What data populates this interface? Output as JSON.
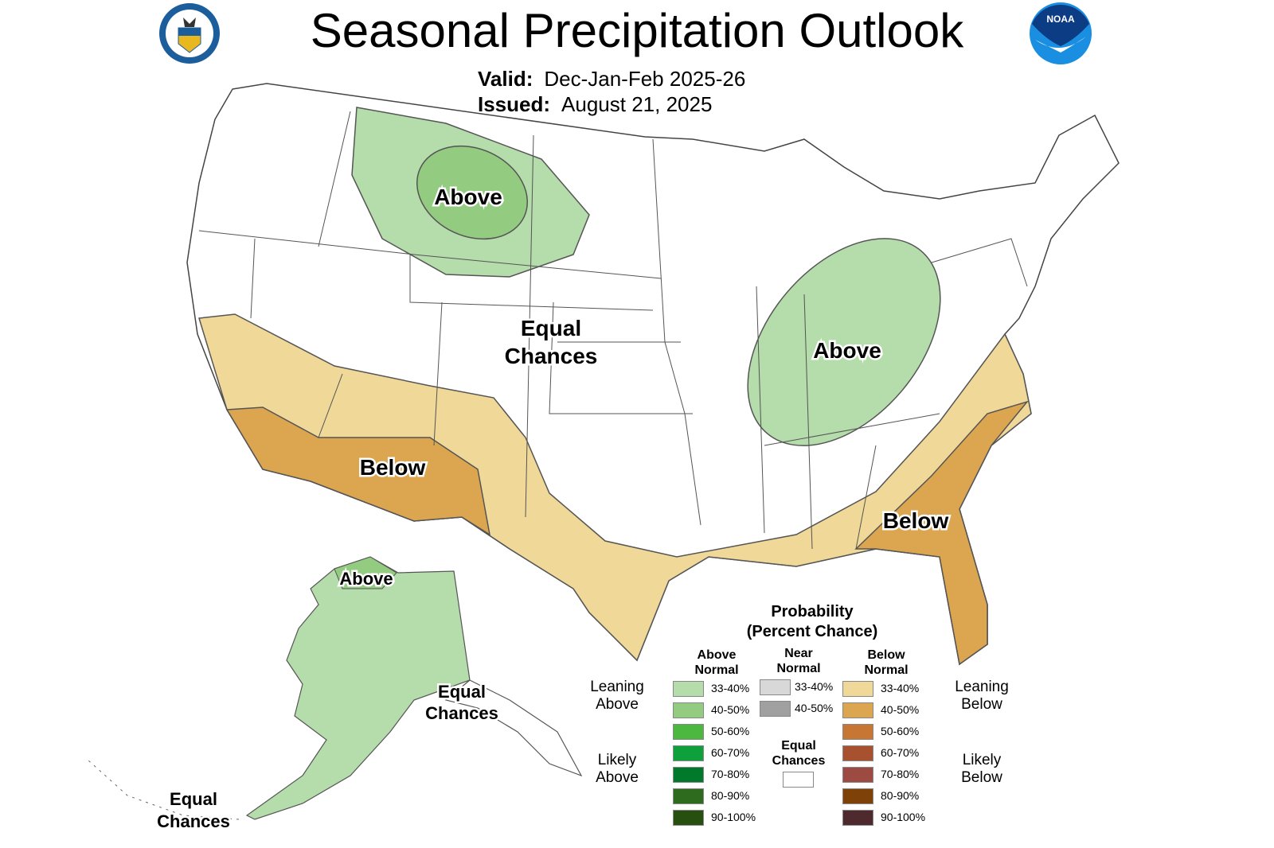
{
  "header": {
    "title": "Seasonal Precipitation Outlook",
    "valid_label": "Valid:",
    "valid_value": "Dec-Jan-Feb 2025-26",
    "issued_label": "Issued:",
    "issued_value": "August 21, 2025",
    "left_logo": "Department of Commerce seal",
    "right_logo": "NOAA",
    "right_logo_text": "NOAA"
  },
  "map": {
    "labels": {
      "nw_above": "Above",
      "ohio_above": "Above",
      "central_ec_1": "Equal",
      "central_ec_2": "Chances",
      "sw_below": "Below",
      "se_below": "Below",
      "ak_above": "Above",
      "ak_ec_1": "Equal",
      "ak_ec_2": "Chances",
      "ak_sw_ec_1": "Equal",
      "ak_sw_ec_2": "Chances"
    }
  },
  "legend": {
    "title_1": "Probability",
    "title_2": "(Percent Chance)",
    "above_head_1": "Above",
    "above_head_2": "Normal",
    "near_head_1": "Near",
    "near_head_2": "Normal",
    "below_head_1": "Below",
    "below_head_2": "Normal",
    "leaning_above_1": "Leaning",
    "leaning_above_2": "Above",
    "likely_above_1": "Likely",
    "likely_above_2": "Above",
    "leaning_below_1": "Leaning",
    "leaning_below_2": "Below",
    "likely_below_1": "Likely",
    "likely_below_2": "Below",
    "equal_1": "Equal",
    "equal_2": "Chances",
    "above": [
      {
        "range": "33-40%",
        "color": "#b5dcab"
      },
      {
        "range": "40-50%",
        "color": "#93cc80"
      },
      {
        "range": "50-60%",
        "color": "#4db840"
      },
      {
        "range": "60-70%",
        "color": "#0ea03a"
      },
      {
        "range": "70-80%",
        "color": "#007a2a"
      },
      {
        "range": "80-90%",
        "color": "#2e6b1f"
      },
      {
        "range": "90-100%",
        "color": "#274f10"
      }
    ],
    "near": [
      {
        "range": "33-40%",
        "color": "#d8d8d8"
      },
      {
        "range": "40-50%",
        "color": "#a0a0a0"
      }
    ],
    "below": [
      {
        "range": "33-40%",
        "color": "#f0d898"
      },
      {
        "range": "40-50%",
        "color": "#dca550"
      },
      {
        "range": "50-60%",
        "color": "#c87634"
      },
      {
        "range": "60-70%",
        "color": "#a8512e"
      },
      {
        "range": "70-80%",
        "color": "#9c4a42"
      },
      {
        "range": "80-90%",
        "color": "#7e4108"
      },
      {
        "range": "90-100%",
        "color": "#4e2a2e"
      }
    ],
    "equal_color": "#ffffff"
  }
}
